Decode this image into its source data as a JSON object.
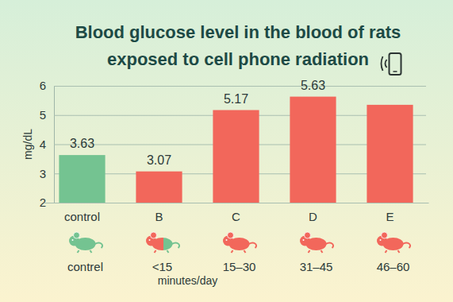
{
  "chart_data": {
    "type": "bar",
    "title": "Blood glucose level in the blood of rats exposed to cell phone radiation",
    "y_label": "mg/dL",
    "categories": [
      "control",
      "B",
      "C",
      "D",
      "E"
    ],
    "values": [
      3.63,
      3.07,
      5.17,
      5.63,
      5.35
    ],
    "value_labels": [
      "3.63",
      "3.07",
      "5.17",
      "5.63",
      null
    ],
    "data_labels": true,
    "colors": [
      "#74c391",
      "#f2675b",
      "#f2675b",
      "#f2675b",
      "#f2675b"
    ],
    "ylim": [
      2,
      6
    ],
    "yticks": [
      2,
      3,
      4,
      5,
      6
    ],
    "grid": true,
    "exposure_labels": [
      "contrel",
      "<15",
      "15–30",
      "31–45",
      "46–60"
    ],
    "exposure_unit": "minutes/day"
  }
}
